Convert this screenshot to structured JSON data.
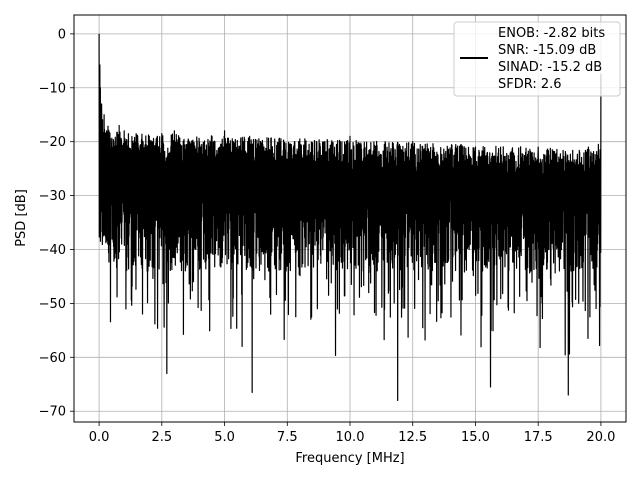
{
  "chart_data": {
    "type": "line",
    "title": "",
    "xlabel": "Frequency [MHz]",
    "ylabel": "PSD [dB]",
    "xlim": [
      -1.0,
      21.0
    ],
    "ylim": [
      -72,
      3.5
    ],
    "xticks": [
      0.0,
      2.5,
      5.0,
      7.5,
      10.0,
      12.5,
      15.0,
      17.5,
      20.0
    ],
    "xtick_labels": [
      "0.0",
      "2.5",
      "5.0",
      "7.5",
      "10.0",
      "12.5",
      "15.0",
      "17.5",
      "20.0"
    ],
    "yticks": [
      0,
      -10,
      -20,
      -30,
      -40,
      -50,
      -60,
      -70
    ],
    "ytick_labels": [
      "0",
      "−10",
      "−20",
      "−30",
      "−40",
      "−50",
      "−60",
      "−70"
    ],
    "grid": true,
    "legend_position": "top-right",
    "legend_lines": [
      "ENOB: -2.82 bits",
      "SNR: -15.09 dB",
      "SINAD: -15.2 dB",
      "SFDR: 2.6"
    ],
    "series": [
      {
        "color": "#000000",
        "description": "dense noise-like PSD from 0 to 20 MHz",
        "x": [
          0.0,
          0.02,
          0.05,
          0.1,
          0.2,
          0.3,
          0.5,
          0.8,
          1.0,
          1.5,
          2.0,
          2.5,
          2.7,
          3.0,
          4.0,
          4.5,
          5.0,
          6.0,
          6.1,
          7.0,
          7.8,
          8.0,
          9.0,
          10.0,
          11.0,
          11.8,
          11.9,
          12.5,
          13.0,
          14.2,
          15.0,
          15.6,
          16.0,
          17.0,
          17.5,
          18.7,
          19.5,
          19.9,
          20.0
        ],
        "y": [
          0.0,
          -12.0,
          -10.0,
          -13.0,
          -15.0,
          -18.0,
          -20.0,
          -17.0,
          -18.0,
          -19.0,
          -19.0,
          -18.5,
          -63.0,
          -18.0,
          -20.0,
          -19.0,
          -18.0,
          -19.0,
          -66.5,
          -19.5,
          -20.0,
          -19.5,
          -20.0,
          -19.0,
          -21.0,
          -21.5,
          -68.0,
          -20.0,
          -20.5,
          -21.0,
          -21.0,
          -65.5,
          -21.0,
          -22.0,
          -21.0,
          -67.0,
          -21.0,
          -20.5,
          -7.5
        ]
      }
    ]
  }
}
